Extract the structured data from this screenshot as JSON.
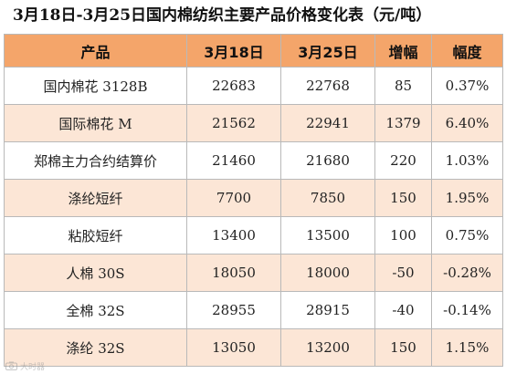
{
  "title": "3月18日-3月25日国内棉纺织主要产品价格变化表（元/吨）",
  "table": {
    "headers": [
      "产品",
      "3月18日",
      "3月25日",
      "增幅",
      "幅度"
    ],
    "rows": [
      [
        "国内棉花 3128B",
        "22683",
        "22768",
        "85",
        "0.37%"
      ],
      [
        "国际棉花 M",
        "21562",
        "22941",
        "1379",
        "6.40%"
      ],
      [
        "郑棉主力合约结算价",
        "21460",
        "21680",
        "220",
        "1.03%"
      ],
      [
        "涤纶短纤",
        "7700",
        "7850",
        "150",
        "1.95%"
      ],
      [
        "粘胶短纤",
        "13400",
        "13500",
        "100",
        "0.75%"
      ],
      [
        "人棉 30S",
        "18050",
        "18000",
        "-50",
        "-0.28%"
      ],
      [
        "全棉 32S",
        "28955",
        "28915",
        "-40",
        "-0.14%"
      ],
      [
        "涤纶 32S",
        "13050",
        "13200",
        "150",
        "1.15%"
      ]
    ]
  },
  "watermark": {
    "icon": "camera-watermark-icon",
    "text": "大时器"
  },
  "colors": {
    "header_bg": "#f4a56a",
    "row_alt_bg": "#fce6d6",
    "row_bg": "#ffffff",
    "border": "#b9b9b9"
  }
}
